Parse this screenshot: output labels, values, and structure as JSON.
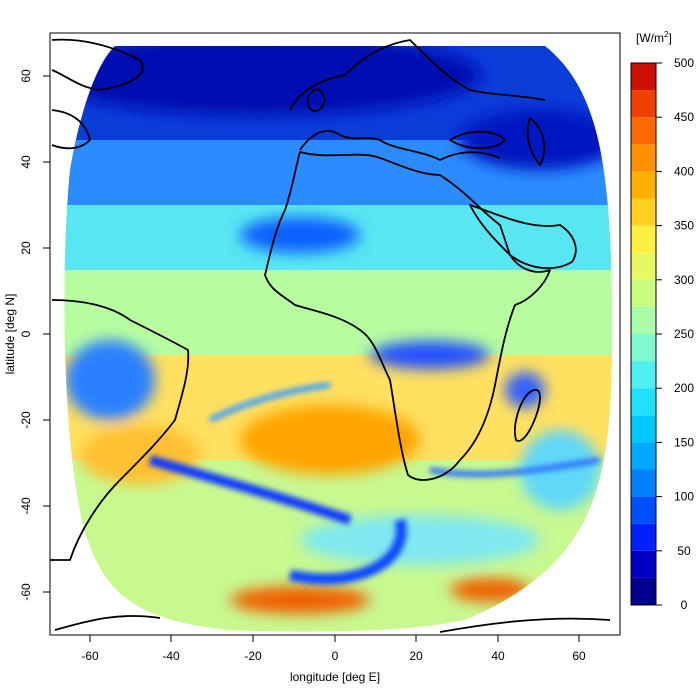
{
  "chart_data": {
    "type": "heatmap",
    "title": "",
    "xlabel": "longitude [deg E]",
    "ylabel": "latitude [deg N]",
    "xlim": [
      -70,
      70
    ],
    "ylim": [
      -70,
      70
    ],
    "x_ticks": [
      "-60",
      "-40",
      "-20",
      "0",
      "20",
      "40",
      "60"
    ],
    "y_ticks": [
      "60",
      "40",
      "20",
      "0",
      "-20",
      "-40",
      "-60"
    ],
    "x_tick_values": [
      -60,
      -40,
      -20,
      0,
      20,
      40,
      60
    ],
    "y_tick_values": [
      60,
      40,
      20,
      0,
      -20,
      -40,
      -60
    ],
    "colorbar": {
      "unit_label": "[W/m",
      "unit_superscript": "2",
      "unit_close": "]",
      "range": [
        0,
        500
      ],
      "step": 25,
      "tick_labels": [
        "500",
        "450",
        "400",
        "350",
        "300",
        "250",
        "200",
        "150",
        "100",
        "50",
        "0"
      ],
      "tick_values": [
        500,
        450,
        400,
        350,
        300,
        250,
        200,
        150,
        100,
        50,
        0
      ],
      "colors": [
        "#00008f",
        "#0000c4",
        "#0020ff",
        "#0050ff",
        "#0080ff",
        "#00a8ff",
        "#00c8ff",
        "#20e0ff",
        "#50f0f0",
        "#80f8d0",
        "#a8fca8",
        "#c8fc80",
        "#e8f860",
        "#fff040",
        "#ffd020",
        "#ffb000",
        "#ff9000",
        "#ff6a00",
        "#f04000",
        "#d01000"
      ]
    },
    "grid": false,
    "legend": "colorbar-right"
  }
}
